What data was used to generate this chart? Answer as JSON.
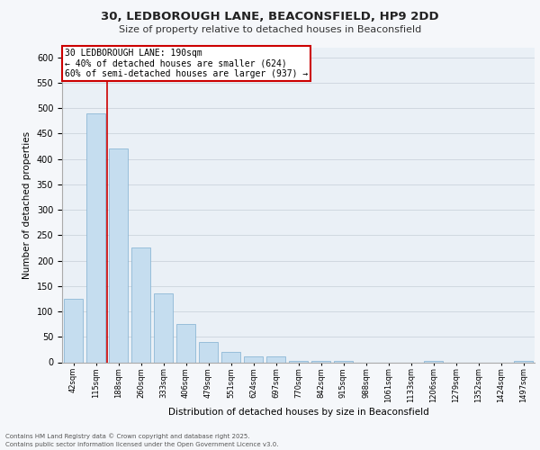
{
  "title1": "30, LEDBOROUGH LANE, BEACONSFIELD, HP9 2DD",
  "title2": "Size of property relative to detached houses in Beaconsfield",
  "xlabel": "Distribution of detached houses by size in Beaconsfield",
  "ylabel": "Number of detached properties",
  "categories": [
    "42sqm",
    "115sqm",
    "188sqm",
    "260sqm",
    "333sqm",
    "406sqm",
    "479sqm",
    "551sqm",
    "624sqm",
    "697sqm",
    "770sqm",
    "842sqm",
    "915sqm",
    "988sqm",
    "1061sqm",
    "1133sqm",
    "1206sqm",
    "1279sqm",
    "1352sqm",
    "1424sqm",
    "1497sqm"
  ],
  "values": [
    125,
    490,
    420,
    225,
    135,
    75,
    40,
    20,
    12,
    12,
    3,
    3,
    3,
    0,
    0,
    0,
    3,
    0,
    0,
    0,
    3
  ],
  "bar_color": "#c5ddef",
  "bar_edge_color": "#7fafd0",
  "vline_color": "#cc0000",
  "vline_x_index": 1.5,
  "annotation_title": "30 LEDBOROUGH LANE: 190sqm",
  "annotation_line1": "← 40% of detached houses are smaller (624)",
  "annotation_line2": "60% of semi-detached houses are larger (937) →",
  "annotation_box_color": "#cc0000",
  "ylim": [
    0,
    620
  ],
  "yticks": [
    0,
    50,
    100,
    150,
    200,
    250,
    300,
    350,
    400,
    450,
    500,
    550,
    600
  ],
  "grid_color": "#d0d8e0",
  "bg_color": "#eaf0f6",
  "fig_bg_color": "#f5f7fa",
  "footer1": "Contains HM Land Registry data © Crown copyright and database right 2025.",
  "footer2": "Contains public sector information licensed under the Open Government Licence v3.0."
}
